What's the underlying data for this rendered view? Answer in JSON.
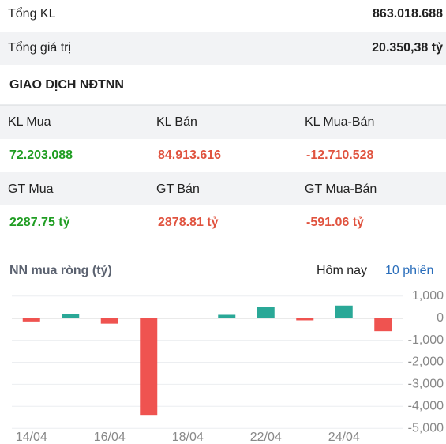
{
  "summary": {
    "rows": [
      [
        "Tổng KL",
        "863.018.688"
      ],
      [
        "Tổng giá trị",
        "20.350,38 tỷ"
      ]
    ]
  },
  "foreign": {
    "title": "GIAO DỊCH NĐTNN",
    "groups": [
      {
        "labels": [
          "KL Mua",
          "KL Bán",
          "KL Mua-Bán"
        ],
        "values": [
          "72.203.088",
          "84.913.616",
          "-12.710.528"
        ],
        "colors": [
          "#1f9d22",
          "#e0533f",
          "#e0533f"
        ]
      },
      {
        "labels": [
          "GT Mua",
          "GT Bán",
          "GT Mua-Bán"
        ],
        "values": [
          "2287.75 tỷ",
          "2878.81 tỷ",
          "-591.06 tỷ"
        ],
        "colors": [
          "#1f9d22",
          "#e0533f",
          "#e0533f"
        ]
      }
    ]
  },
  "tabs": [
    "Hôm nay",
    "10 phiên"
  ],
  "chart_data": {
    "type": "bar",
    "title": "NN mua ròng (tỷ)",
    "categories": [
      "14/04",
      null,
      "16/04",
      null,
      "18/04",
      null,
      "22/04",
      null,
      "24/04",
      null
    ],
    "values": [
      -150,
      180,
      -250,
      -4390,
      10,
      150,
      500,
      -100,
      570,
      -591.06
    ],
    "up_color": "#2aa897",
    "down_color": "#ef5350",
    "ylim": [
      -5100,
      1350
    ],
    "yticks": [
      {
        "value": 1000,
        "label": "1,000"
      },
      0,
      {
        "value": -1000,
        "label": "-1,000"
      },
      {
        "value": -2000,
        "label": "-2,000"
      },
      {
        "value": -3000,
        "label": "-3,000"
      },
      {
        "value": -4000,
        "label": "-4,000"
      },
      {
        "value": -5000,
        "label": "-5,000"
      }
    ],
    "grid": true
  }
}
